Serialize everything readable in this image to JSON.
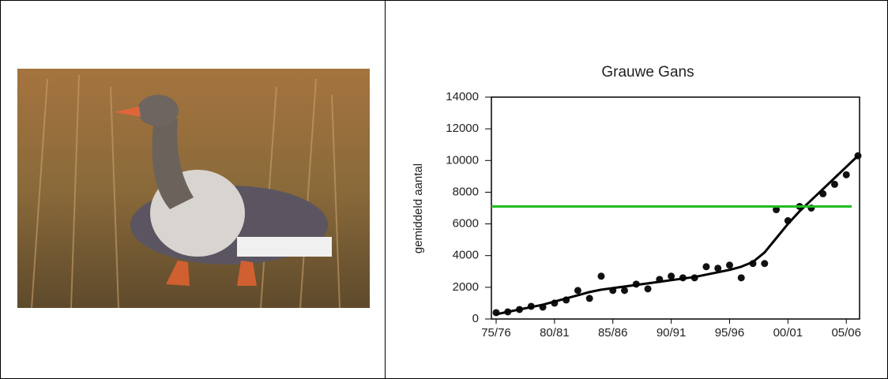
{
  "chart_data": {
    "type": "scatter",
    "title": "Grauwe Gans",
    "y_label": "gemiddeld aantal",
    "categories": [
      "75/76",
      null,
      null,
      null,
      null,
      "80/81",
      null,
      null,
      null,
      null,
      "85/86",
      null,
      null,
      null,
      null,
      "90/91",
      null,
      null,
      null,
      null,
      "95/96",
      null,
      null,
      null,
      null,
      "00/01",
      null,
      null,
      null,
      null,
      "05/06",
      null
    ],
    "series": [
      {
        "color": "#111111",
        "mode": "markers",
        "values": [
          400,
          450,
          600,
          800,
          750,
          1000,
          1200,
          1800,
          1300,
          2700,
          1800,
          1800,
          2200,
          1900,
          2500,
          2700,
          2600,
          2600,
          3300,
          3200,
          3400,
          2600,
          3500,
          3500,
          6900,
          6200,
          7100,
          7000,
          7900,
          8500,
          9100,
          10300
        ]
      },
      {
        "color": "#000000",
        "mode": "line",
        "values": [
          300,
          450,
          600,
          750,
          900,
          1100,
          1300,
          1500,
          1700,
          1850,
          1950,
          2050,
          2150,
          2250,
          2350,
          2450,
          2550,
          2650,
          2800,
          2950,
          3100,
          3300,
          3600,
          4200,
          5100,
          6000,
          6800,
          7500,
          8200,
          8900,
          9600,
          10300
        ]
      }
    ],
    "reference_line": {
      "value": 7100,
      "color": "#22bb22"
    },
    "ylim": [
      0,
      14000
    ],
    "yticks": [
      0,
      2000,
      4000,
      6000,
      8000,
      10000,
      12000,
      14000
    ]
  }
}
